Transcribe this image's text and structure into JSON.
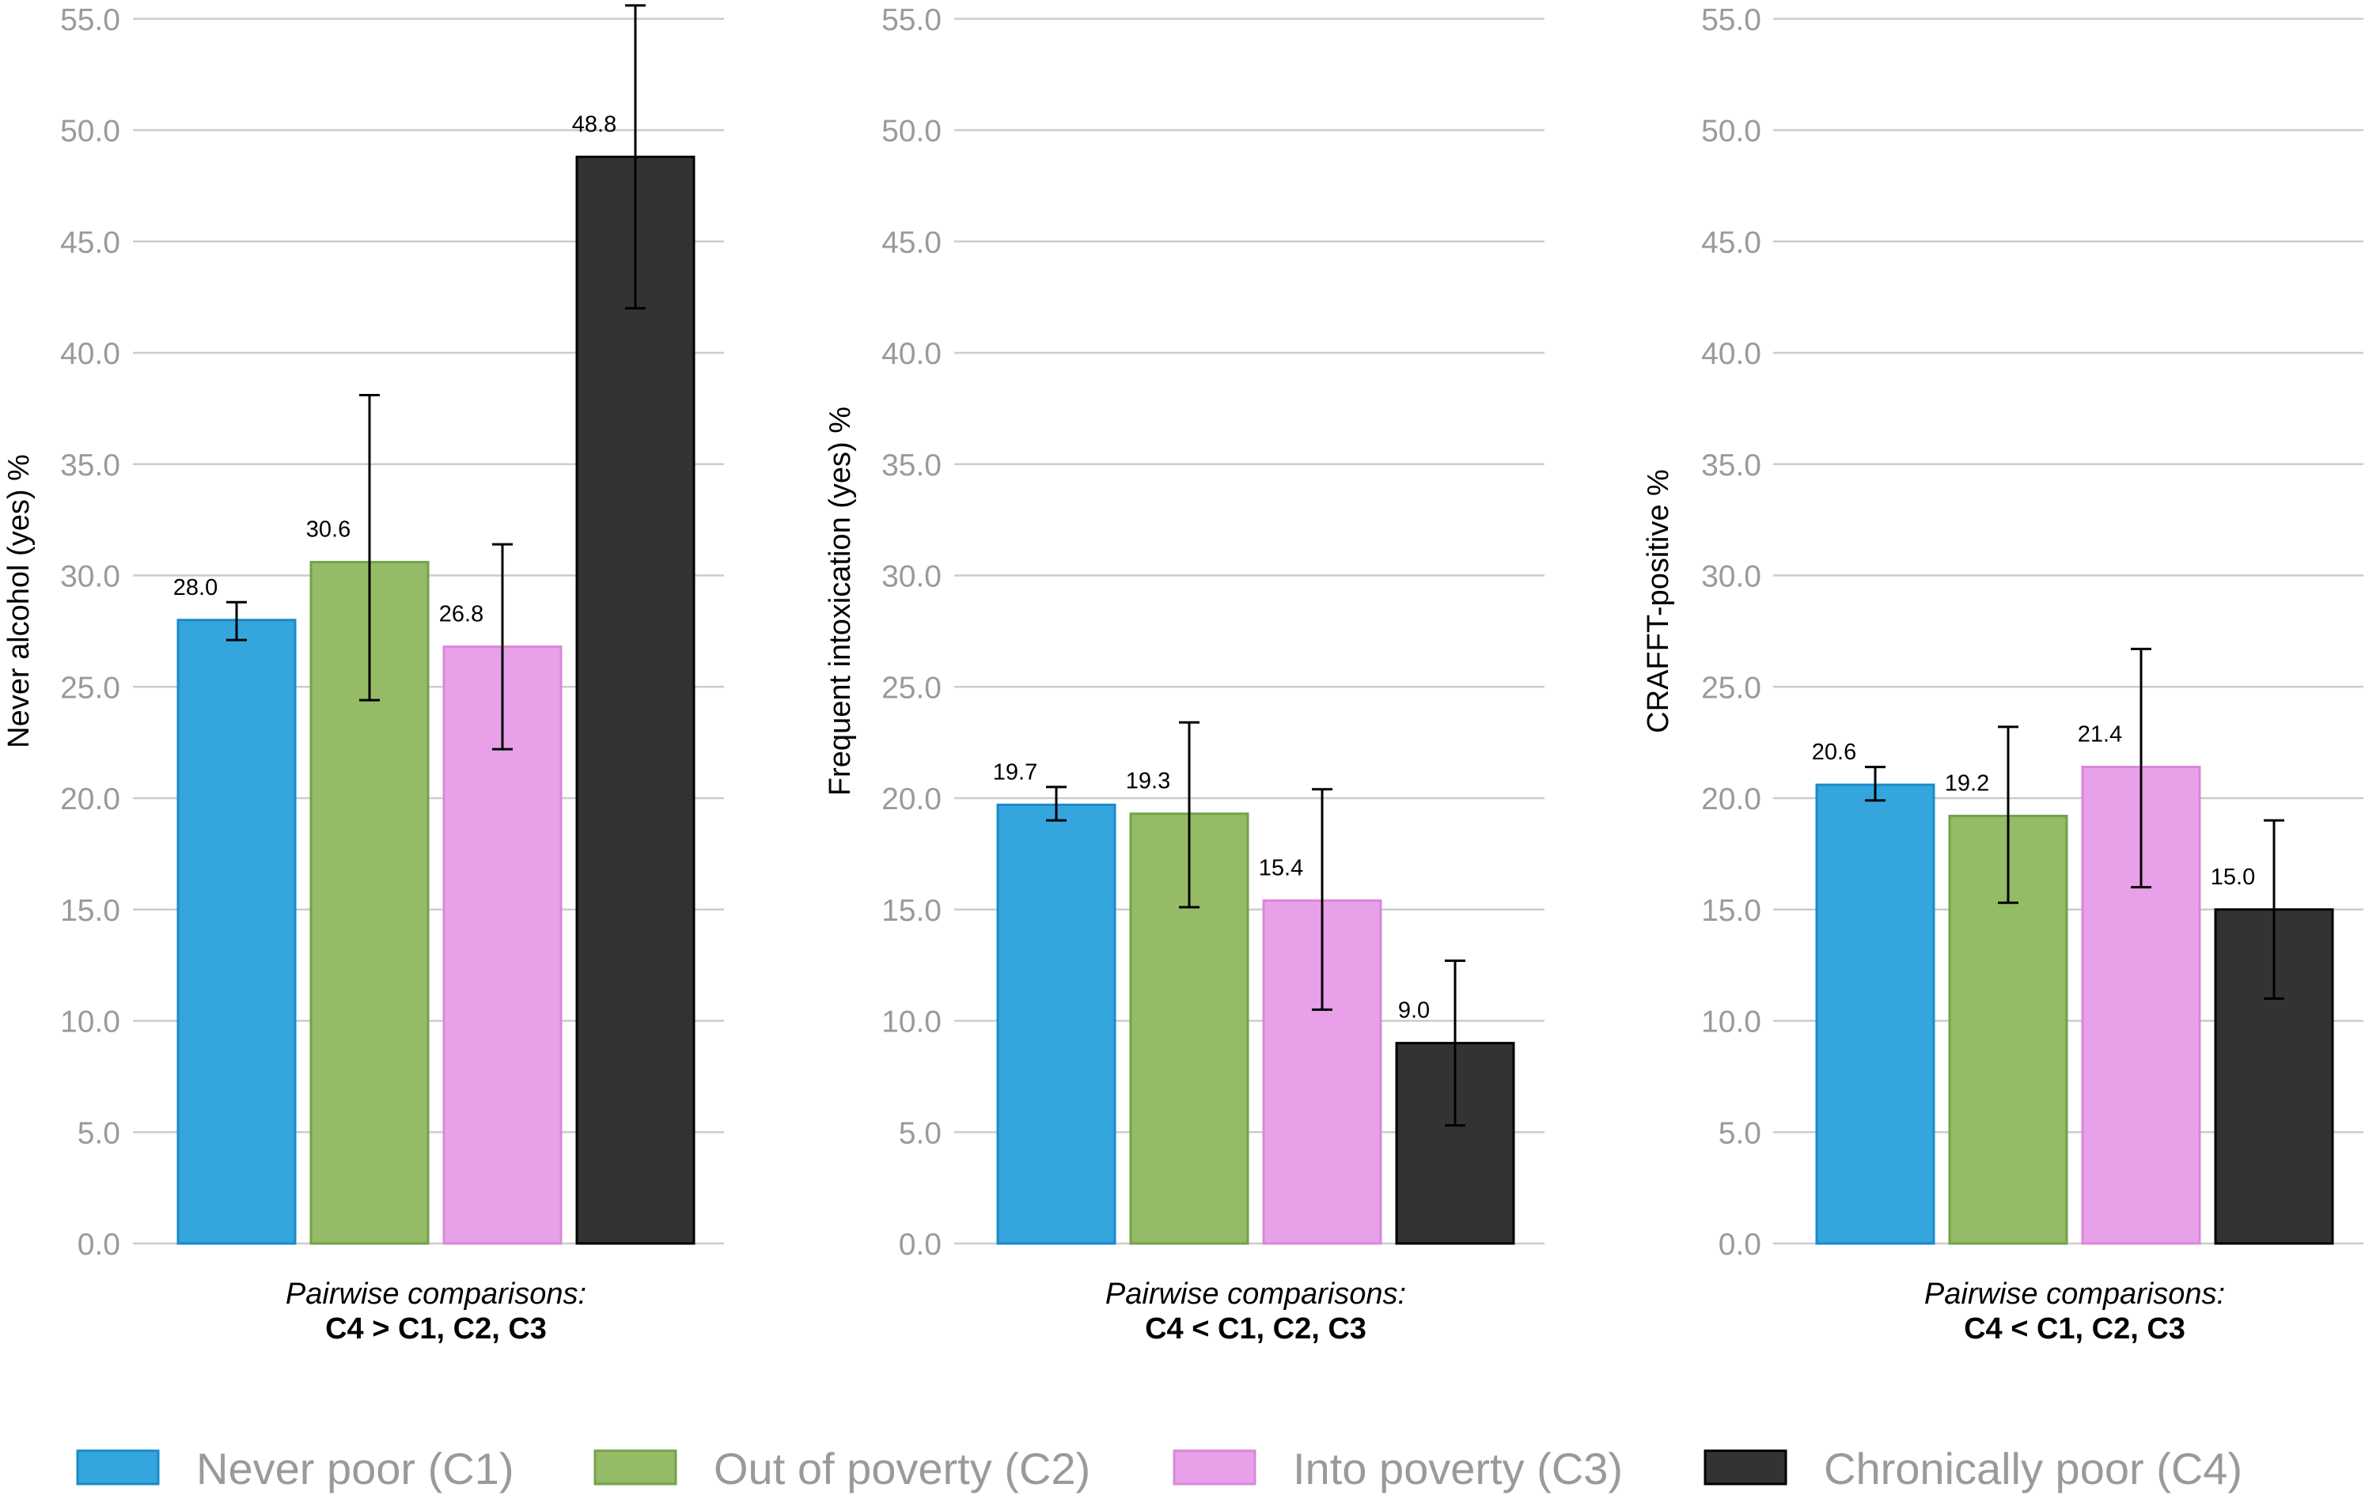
{
  "colors": {
    "C1": "#35a6dd",
    "C2": "#95bb66",
    "C3": "#e8a0e8",
    "C4": "#333333",
    "C1_stroke": "#1a8ac9",
    "C2_stroke": "#73a24a",
    "C3_stroke": "#d888d8",
    "C4_stroke": "#000000",
    "grid": "#cccccc",
    "tick_text": "#9a9a9a"
  },
  "legend": [
    {
      "key": "C1",
      "label": "Never poor (C1)"
    },
    {
      "key": "C2",
      "label": "Out of poverty (C2)"
    },
    {
      "key": "C3",
      "label": "Into poverty (C3)"
    },
    {
      "key": "C4",
      "label": "Chronically poor (C4)"
    }
  ],
  "chart_data": [
    {
      "type": "bar",
      "ylabel": "Never alcohol (yes) %",
      "ylim": [
        0,
        55
      ],
      "yticks": [
        "0.0",
        "5.0",
        "10.0",
        "15.0",
        "20.0",
        "25.0",
        "30.0",
        "35.0",
        "40.0",
        "45.0",
        "50.0",
        "55.0"
      ],
      "categories": [
        "C1",
        "C2",
        "C3",
        "C4"
      ],
      "values": [
        28.0,
        30.6,
        26.8,
        48.8
      ],
      "value_labels": [
        "28.0",
        "30.6",
        "26.8",
        "48.8"
      ],
      "ci_low": [
        27.1,
        24.4,
        22.2,
        42.0
      ],
      "ci_high": [
        28.8,
        38.1,
        31.4,
        55.6
      ],
      "comparison_title": "Pairwise comparisons:",
      "comparison_result": "C4 > C1, C2, C3"
    },
    {
      "type": "bar",
      "ylabel": "Frequent intoxication (yes) %",
      "ylim": [
        0,
        55
      ],
      "yticks": [
        "0.0",
        "5.0",
        "10.0",
        "15.0",
        "20.0",
        "25.0",
        "30.0",
        "35.0",
        "40.0",
        "45.0",
        "50.0",
        "55.0"
      ],
      "categories": [
        "C1",
        "C2",
        "C3",
        "C4"
      ],
      "values": [
        19.7,
        19.3,
        15.4,
        9.0
      ],
      "value_labels": [
        "19.7",
        "19.3",
        "15.4",
        "9.0"
      ],
      "ci_low": [
        19.0,
        15.1,
        10.5,
        5.3
      ],
      "ci_high": [
        20.5,
        23.4,
        20.4,
        12.7
      ],
      "comparison_title": "Pairwise comparisons:",
      "comparison_result": "C4 < C1, C2, C3"
    },
    {
      "type": "bar",
      "ylabel": "CRAFFT-positive %",
      "ylim": [
        0,
        55
      ],
      "yticks": [
        "0.0",
        "5.0",
        "10.0",
        "15.0",
        "20.0",
        "25.0",
        "30.0",
        "35.0",
        "40.0",
        "45.0",
        "50.0",
        "55.0"
      ],
      "categories": [
        "C1",
        "C2",
        "C3",
        "C4"
      ],
      "values": [
        20.6,
        19.2,
        21.4,
        15.0
      ],
      "value_labels": [
        "20.6",
        "19.2",
        "21.4",
        "15.0"
      ],
      "ci_low": [
        19.9,
        15.3,
        16.0,
        11.0
      ],
      "ci_high": [
        21.4,
        23.2,
        26.7,
        19.0
      ],
      "comparison_title": "Pairwise comparisons:",
      "comparison_result": "C4 < C1, C2, C3"
    }
  ]
}
